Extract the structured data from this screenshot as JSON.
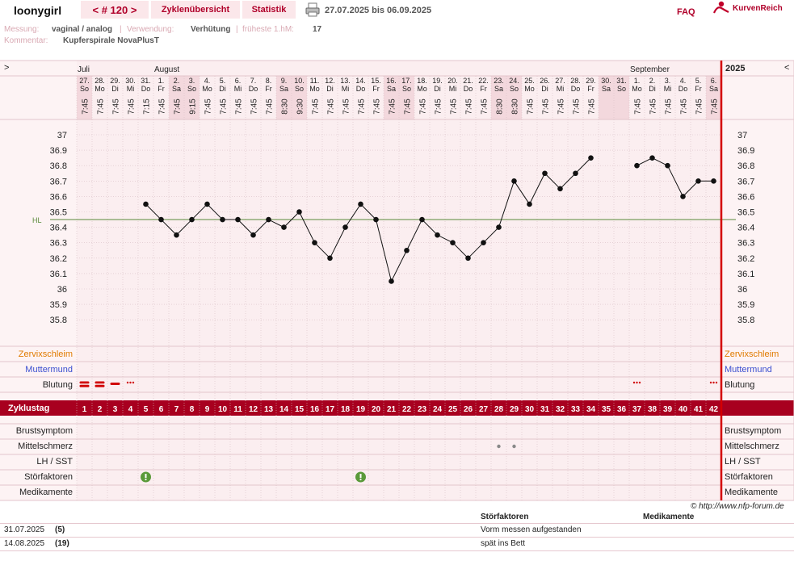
{
  "header": {
    "username": "loonygirl",
    "cycle_nav": "< # 120 >",
    "tab_overview": "Zyklenübersicht",
    "tab_stats": "Statistik",
    "date_range": "27.07.2025 bis 06.09.2025",
    "faq": "FAQ",
    "brand": "KurvenReich"
  },
  "info": {
    "measure_label": "Messung:",
    "measure_value": "vaginal / analog",
    "use_label": "Verwendung:",
    "use_value": "Verhütung",
    "earliest_label": "früheste 1.hM:",
    "earliest_value": "17",
    "comment_label": "Kommentar:",
    "comment_value": "Kupferspirale NovaPlusT"
  },
  "chart": {
    "nav_left": ">",
    "nav_right": "<",
    "year": "2025",
    "months": [
      {
        "label": "Juli",
        "col": 0
      },
      {
        "label": "August",
        "col": 5
      },
      {
        "label": "September",
        "col": 36
      }
    ],
    "hl_label": "HL",
    "rows": {
      "zervix": "Zervixschleim",
      "muttermund": "Muttermund",
      "blutung": "Blutung",
      "zyklustag": "Zyklustag",
      "brust": "Brustsymptom",
      "mittel": "Mittelschmerz",
      "lh": "LH / SST",
      "stoer": "Störfaktoren",
      "medi": "Medikamente"
    }
  },
  "chart_data": {
    "type": "line",
    "y_ticks": [
      "37",
      "36.9",
      "36.8",
      "36.7",
      "36.6",
      "36.5",
      "36.4",
      "36.3",
      "36.2",
      "36.1",
      "36",
      "35.9",
      "35.8"
    ],
    "ylim": [
      35.8,
      37.0
    ],
    "hl_value": 36.45,
    "days": [
      {
        "d": "27.",
        "w": "So",
        "t": "7:45",
        "temp": null,
        "cd": "1"
      },
      {
        "d": "28.",
        "w": "Mo",
        "t": "7:45",
        "temp": null,
        "cd": "2"
      },
      {
        "d": "29.",
        "w": "Di",
        "t": "7:45",
        "temp": null,
        "cd": "3"
      },
      {
        "d": "30.",
        "w": "Mi",
        "t": "7:45",
        "temp": null,
        "cd": "4"
      },
      {
        "d": "31.",
        "w": "Do",
        "t": "7:15",
        "temp": 36.55,
        "cd": "5"
      },
      {
        "d": "1.",
        "w": "Fr",
        "t": "7:45",
        "temp": 36.45,
        "cd": "6"
      },
      {
        "d": "2.",
        "w": "Sa",
        "t": "7:45",
        "temp": 36.35,
        "cd": "7"
      },
      {
        "d": "3.",
        "w": "So",
        "t": "9:15",
        "temp": 36.45,
        "cd": "8"
      },
      {
        "d": "4.",
        "w": "Mo",
        "t": "7:45",
        "temp": 36.55,
        "cd": "9"
      },
      {
        "d": "5.",
        "w": "Di",
        "t": "7:45",
        "temp": 36.45,
        "cd": "10"
      },
      {
        "d": "6.",
        "w": "Mi",
        "t": "7:45",
        "temp": 36.45,
        "cd": "11"
      },
      {
        "d": "7.",
        "w": "Do",
        "t": "7:45",
        "temp": 36.35,
        "cd": "12"
      },
      {
        "d": "8.",
        "w": "Fr",
        "t": "7:45",
        "temp": 36.45,
        "cd": "13"
      },
      {
        "d": "9.",
        "w": "Sa",
        "t": "8:30",
        "temp": 36.4,
        "cd": "14"
      },
      {
        "d": "10.",
        "w": "So",
        "t": "9:30",
        "temp": 36.5,
        "cd": "15"
      },
      {
        "d": "11.",
        "w": "Mo",
        "t": "7:45",
        "temp": 36.3,
        "cd": "16"
      },
      {
        "d": "12.",
        "w": "Di",
        "t": "7:45",
        "temp": 36.2,
        "cd": "17"
      },
      {
        "d": "13.",
        "w": "Mi",
        "t": "7:45",
        "temp": 36.4,
        "cd": "18"
      },
      {
        "d": "14.",
        "w": "Do",
        "t": "7:45",
        "temp": 36.55,
        "cd": "19"
      },
      {
        "d": "15.",
        "w": "Fr",
        "t": "7:45",
        "temp": 36.45,
        "cd": "20"
      },
      {
        "d": "16.",
        "w": "Sa",
        "t": "7:45",
        "temp": 36.05,
        "cd": "21"
      },
      {
        "d": "17.",
        "w": "So",
        "t": "7:45",
        "temp": 36.25,
        "cd": "22"
      },
      {
        "d": "18.",
        "w": "Mo",
        "t": "7:45",
        "temp": 36.45,
        "cd": "23"
      },
      {
        "d": "19.",
        "w": "Di",
        "t": "7:45",
        "temp": 36.35,
        "cd": "24"
      },
      {
        "d": "20.",
        "w": "Mi",
        "t": "7:45",
        "temp": 36.3,
        "cd": "25"
      },
      {
        "d": "21.",
        "w": "Do",
        "t": "7:45",
        "temp": 36.2,
        "cd": "26"
      },
      {
        "d": "22.",
        "w": "Fr",
        "t": "7:45",
        "temp": 36.3,
        "cd": "27"
      },
      {
        "d": "23.",
        "w": "Sa",
        "t": "8:30",
        "temp": 36.4,
        "cd": "28"
      },
      {
        "d": "24.",
        "w": "So",
        "t": "8:30",
        "temp": 36.7,
        "cd": "29"
      },
      {
        "d": "25.",
        "w": "Mo",
        "t": "7:45",
        "temp": 36.55,
        "cd": "30"
      },
      {
        "d": "26.",
        "w": "Di",
        "t": "7:45",
        "temp": 36.75,
        "cd": "31"
      },
      {
        "d": "27.",
        "w": "Mi",
        "t": "7:45",
        "temp": 36.65,
        "cd": "32"
      },
      {
        "d": "28.",
        "w": "Do",
        "t": "7:45",
        "temp": 36.75,
        "cd": "33"
      },
      {
        "d": "29.",
        "w": "Fr",
        "t": "7:45",
        "temp": 36.85,
        "cd": "34"
      },
      {
        "d": "30.",
        "w": "Sa",
        "t": "",
        "temp": null,
        "cd": "35"
      },
      {
        "d": "31.",
        "w": "So",
        "t": "",
        "temp": null,
        "cd": "36"
      },
      {
        "d": "1.",
        "w": "Mo",
        "t": "7:45",
        "temp": 36.8,
        "cd": "37"
      },
      {
        "d": "2.",
        "w": "Di",
        "t": "7:45",
        "temp": 36.85,
        "cd": "38"
      },
      {
        "d": "3.",
        "w": "Mi",
        "t": "7:45",
        "temp": 36.8,
        "cd": "39"
      },
      {
        "d": "4.",
        "w": "Do",
        "t": "7:45",
        "temp": 36.6,
        "cd": "40"
      },
      {
        "d": "5.",
        "w": "Fr",
        "t": "7:45",
        "temp": 36.7,
        "cd": "41"
      },
      {
        "d": "6.",
        "w": "Sa",
        "t": "7:45",
        "temp": 36.7,
        "cd": "42"
      }
    ],
    "blutung": [
      {
        "col": 0,
        "type": "strong"
      },
      {
        "col": 1,
        "type": "strong"
      },
      {
        "col": 2,
        "type": "medium"
      },
      {
        "col": 3,
        "type": "spotting"
      },
      {
        "col": 36,
        "type": "spotting"
      },
      {
        "col": 41,
        "type": "spotting"
      }
    ],
    "mittelschmerz_cols": [
      27,
      28
    ],
    "stoer_cols": [
      4,
      18
    ]
  },
  "footer": {
    "copyright": "© http://www.nfp-forum.de",
    "col_stoer": "Störfaktoren",
    "col_medi": "Medikamente",
    "entries": [
      {
        "date": "31.07.2025",
        "day": "(5)",
        "text": "Vorm messen aufgestanden"
      },
      {
        "date": "14.08.2025",
        "day": "(19)",
        "text": "spät ins Bett"
      }
    ]
  }
}
